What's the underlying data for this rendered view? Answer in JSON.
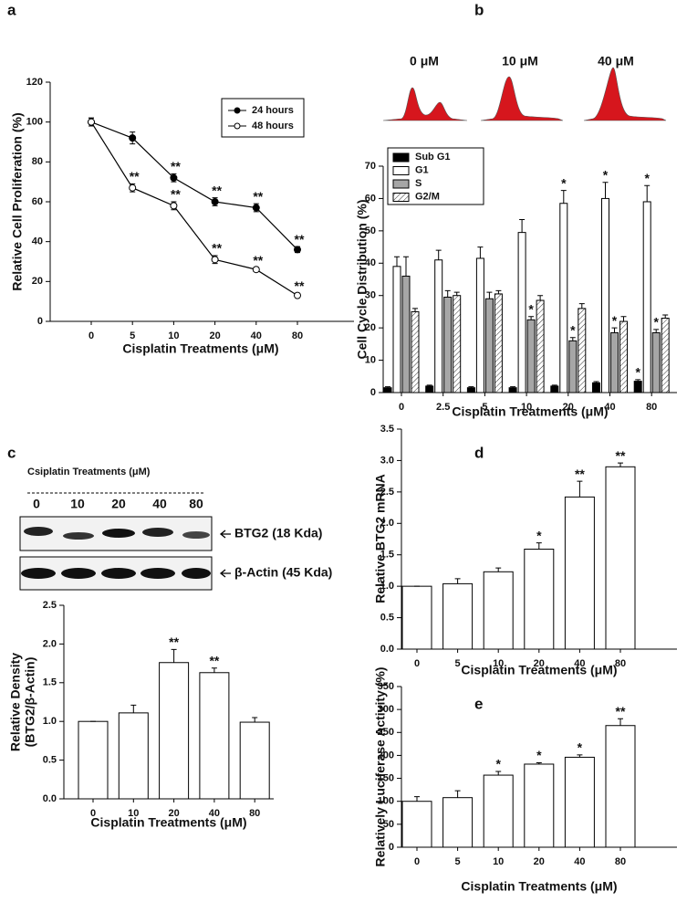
{
  "chart_data": [
    {
      "type": "line",
      "panel": "a",
      "xlabel": "Cisplatin Treatments (μM)",
      "ylabel": "Relative Cell Proliferation (%)",
      "categories": [
        "0",
        "5",
        "10",
        "20",
        "40",
        "80"
      ],
      "series": [
        {
          "name": "24 hours",
          "color": "#000000",
          "marker_fill": "#000000",
          "values": [
            100,
            92,
            72,
            60,
            57,
            36
          ],
          "errors": [
            2,
            3,
            2,
            2,
            2,
            1.5
          ],
          "significance": [
            null,
            null,
            "**",
            "**",
            "**",
            "**"
          ]
        },
        {
          "name": "48 hours",
          "color": "#000000",
          "marker_fill": "#ffffff",
          "values": [
            100,
            67,
            58,
            31,
            26,
            13
          ],
          "errors": [
            2,
            2,
            2,
            2,
            1,
            1
          ],
          "significance": [
            null,
            "**",
            "**",
            "**",
            "**",
            "**"
          ]
        }
      ],
      "ylim": [
        0,
        120
      ],
      "yticks": [
        0,
        20,
        40,
        60,
        80,
        100,
        120
      ],
      "legend": "upper right"
    },
    {
      "type": "bar",
      "panel": "b",
      "header_labels": [
        "0 μM",
        "10 μM",
        "40 μM"
      ],
      "xlabel": "Cisplatin Treatments (μM)",
      "ylabel": "Cell Cycle Distribution (%)",
      "categories": [
        "0",
        "2.5",
        "5",
        "10",
        "20",
        "40",
        "80"
      ],
      "series": [
        {
          "name": "Sub G1",
          "color": "#000000",
          "values": [
            1.5,
            2,
            1.5,
            1.5,
            2,
            3,
            3.5
          ],
          "errors": [
            0.3,
            0.3,
            0.3,
            0.3,
            0.3,
            0.4,
            0.5
          ],
          "significance": [
            null,
            null,
            null,
            null,
            null,
            null,
            "*"
          ]
        },
        {
          "name": "G1",
          "color": "#ffffff",
          "values": [
            39,
            41,
            41.5,
            49.5,
            58.5,
            60,
            59
          ],
          "errors": [
            3,
            3,
            3.5,
            4,
            4,
            5,
            5
          ],
          "significance": [
            null,
            null,
            null,
            null,
            "*",
            "*",
            "*"
          ]
        },
        {
          "name": "S",
          "color": "#a6a6a6",
          "values": [
            36,
            29.5,
            29,
            22.5,
            16,
            18.5,
            18.5
          ],
          "errors": [
            6,
            2,
            2,
            1,
            1,
            1.5,
            1
          ],
          "significance": [
            null,
            null,
            null,
            "*",
            "*",
            "*",
            "*"
          ]
        },
        {
          "name": "G2/M",
          "color": "#ffffff",
          "pattern": "hatch",
          "values": [
            25,
            30,
            30.5,
            28.5,
            26,
            22,
            23
          ],
          "errors": [
            1,
            1,
            1,
            1.5,
            1.5,
            1.5,
            1
          ],
          "significance": [
            null,
            null,
            null,
            null,
            null,
            null,
            null
          ]
        }
      ],
      "ylim": [
        0,
        70
      ],
      "yticks": [
        0,
        10,
        20,
        30,
        40,
        50,
        60,
        70
      ],
      "legend": "upper left"
    },
    {
      "type": "bar",
      "panel": "c",
      "blot": {
        "title": "Csiplatin Treatments (μM)",
        "lanes": [
          "0",
          "10",
          "20",
          "40",
          "80"
        ],
        "bands": [
          "BTG2 (18 Kda)",
          "β-Actin (45 Kda)"
        ]
      },
      "xlabel": "Cisplatin Treatments (μM)",
      "ylabel": [
        "Relative Density",
        "(BTG2/β-Actin)"
      ],
      "categories": [
        "0",
        "10",
        "20",
        "40",
        "80"
      ],
      "values": [
        1.0,
        1.11,
        1.76,
        1.63,
        0.99
      ],
      "errors": [
        0,
        0.1,
        0.17,
        0.06,
        0.06
      ],
      "significance": [
        null,
        null,
        "**",
        "**",
        null
      ],
      "color": "#ffffff",
      "ylim": [
        0,
        2.5
      ],
      "yticks": [
        {
          "value": 0,
          "label": "0.0"
        },
        {
          "value": 0.5,
          "label": "0.5"
        },
        {
          "value": 1,
          "label": "1.0"
        },
        {
          "value": 1.5,
          "label": "1.5"
        },
        {
          "value": 2,
          "label": "2.0"
        },
        {
          "value": 2.5,
          "label": "2.5"
        }
      ]
    },
    {
      "type": "bar",
      "panel": "d",
      "xlabel": "Cisplatin Treatments (μM)",
      "ylabel": "Relative BTG2 mRNA",
      "categories": [
        "0",
        "5",
        "10",
        "20",
        "40",
        "80"
      ],
      "values": [
        1.0,
        1.04,
        1.23,
        1.59,
        2.42,
        2.9
      ],
      "errors": [
        0,
        0.08,
        0.06,
        0.1,
        0.25,
        0.06
      ],
      "significance": [
        null,
        null,
        null,
        "*",
        "**",
        "**"
      ],
      "color": "#ffffff",
      "ylim": [
        0,
        3.5
      ],
      "yticks": [
        {
          "value": 0,
          "label": "0.0"
        },
        {
          "value": 0.5,
          "label": "0.5"
        },
        {
          "value": 1,
          "label": "1.0"
        },
        {
          "value": 1.5,
          "label": "1.5"
        },
        {
          "value": 2,
          "label": "2.0"
        },
        {
          "value": 2.5,
          "label": "2.5"
        },
        {
          "value": 3,
          "label": "3.0"
        },
        {
          "value": 3.5,
          "label": "3.5"
        }
      ]
    },
    {
      "type": "bar",
      "panel": "e",
      "xlabel": "Cisplatin Treatments (μM)",
      "ylabel": "Relatively Luciferase Activity (%)",
      "categories": [
        "0",
        "5",
        "10",
        "20",
        "40",
        "80"
      ],
      "values": [
        100,
        108,
        157,
        181,
        196,
        265
      ],
      "errors": [
        10,
        15,
        8,
        3,
        5,
        15
      ],
      "significance": [
        null,
        null,
        "*",
        "*",
        "*",
        "**"
      ],
      "color": "#ffffff",
      "ylim": [
        0,
        350
      ],
      "yticks": [
        0,
        50,
        100,
        150,
        200,
        250,
        300,
        350
      ]
    }
  ]
}
